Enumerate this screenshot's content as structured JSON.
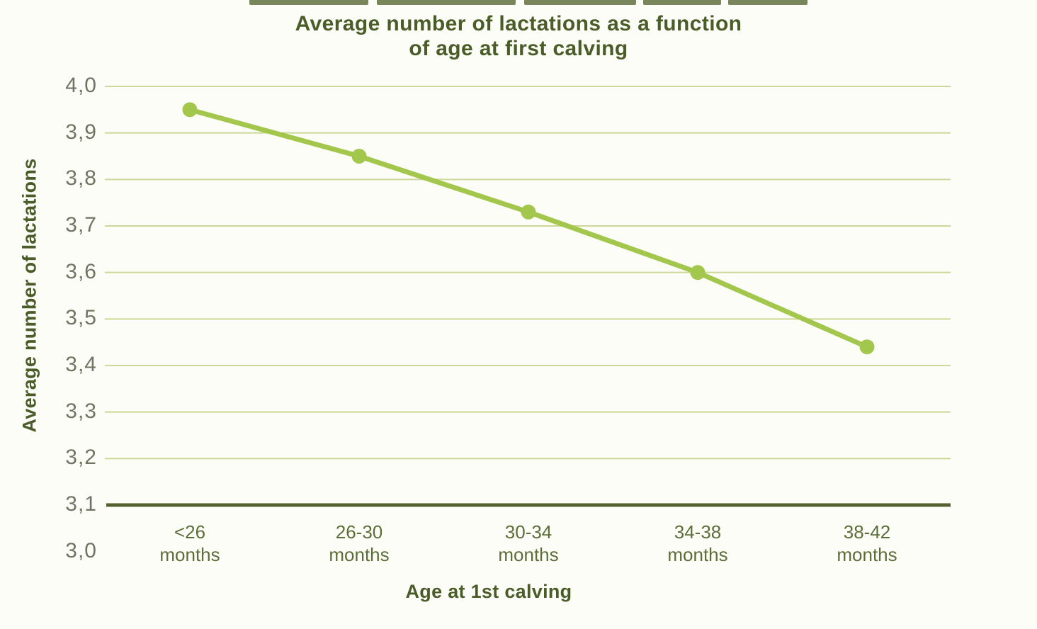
{
  "page": {
    "background": "#fdfdf8"
  },
  "chart_data": {
    "type": "line",
    "title_line1": "Average number of lactations as a function",
    "title_line2": "of age at first calving",
    "ylabel": "Average number of lactations",
    "xlabel": "Age at 1st calving",
    "categories": [
      [
        "<26",
        "months"
      ],
      [
        "26-30",
        "months"
      ],
      [
        "30-34",
        "months"
      ],
      [
        "34-38",
        "months"
      ],
      [
        "38-42",
        "months"
      ]
    ],
    "values": [
      3.95,
      3.85,
      3.73,
      3.6,
      3.44
    ],
    "y_ticks": [
      {
        "label": "4,0",
        "value": 4.0
      },
      {
        "label": "3,9",
        "value": 3.9
      },
      {
        "label": "3,8",
        "value": 3.8
      },
      {
        "label": "3,7",
        "value": 3.7
      },
      {
        "label": "3,6",
        "value": 3.6
      },
      {
        "label": "3,5",
        "value": 3.5
      },
      {
        "label": "3,4",
        "value": 3.4
      },
      {
        "label": "3,3",
        "value": 3.3
      },
      {
        "label": "3,2",
        "value": 3.2
      },
      {
        "label": "3,1",
        "value": 3.1
      },
      {
        "label": "3,0",
        "value": 3.0
      }
    ],
    "ylim": [
      3.0,
      4.0
    ],
    "baseline_value": 3.1,
    "grid": true,
    "legend": "none",
    "decimal_separator": ",",
    "colors": {
      "line": "#a3c74d",
      "marker": "#a3c74d",
      "gridline": "#cbd897",
      "baseline": "#55612f",
      "title": "#4a5c28",
      "y_tick_text": "#6f7463",
      "x_tick_text": "#5c6e38"
    }
  }
}
